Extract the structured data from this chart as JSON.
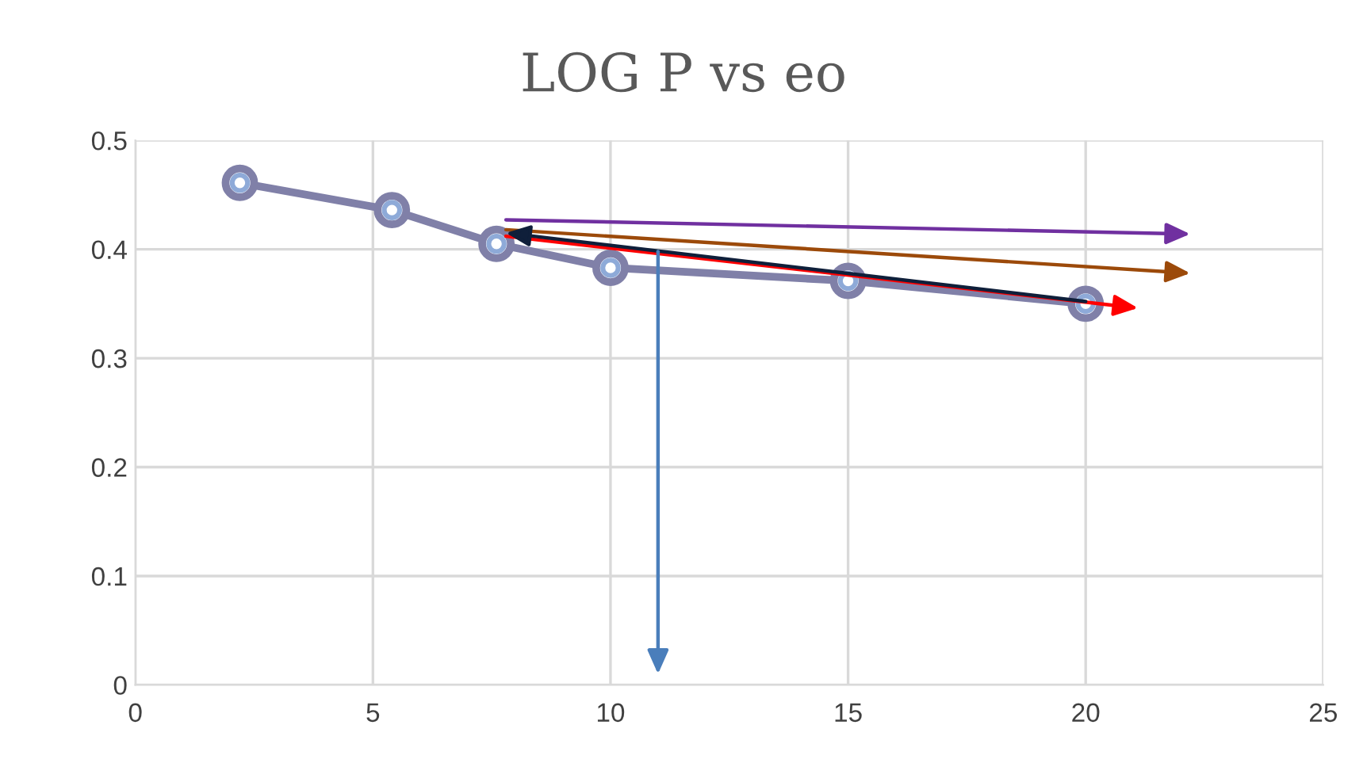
{
  "chart_data": {
    "type": "line",
    "title": "LOG P vs eo",
    "xlim": [
      0,
      25
    ],
    "xticks": [
      0,
      5,
      10,
      15,
      20,
      25
    ],
    "ylim": [
      0,
      0.5
    ],
    "yticks": [
      0,
      0.1,
      0.2,
      0.3,
      0.4,
      0.5
    ],
    "grid": true,
    "marker": "circle",
    "series": [
      {
        "color": "#8080a8",
        "x": [
          2.2,
          5.4,
          7.6,
          10,
          15,
          20
        ],
        "values": [
          0.461,
          0.436,
          0.405,
          0.383,
          0.371,
          0.35
        ]
      }
    ]
  }
}
